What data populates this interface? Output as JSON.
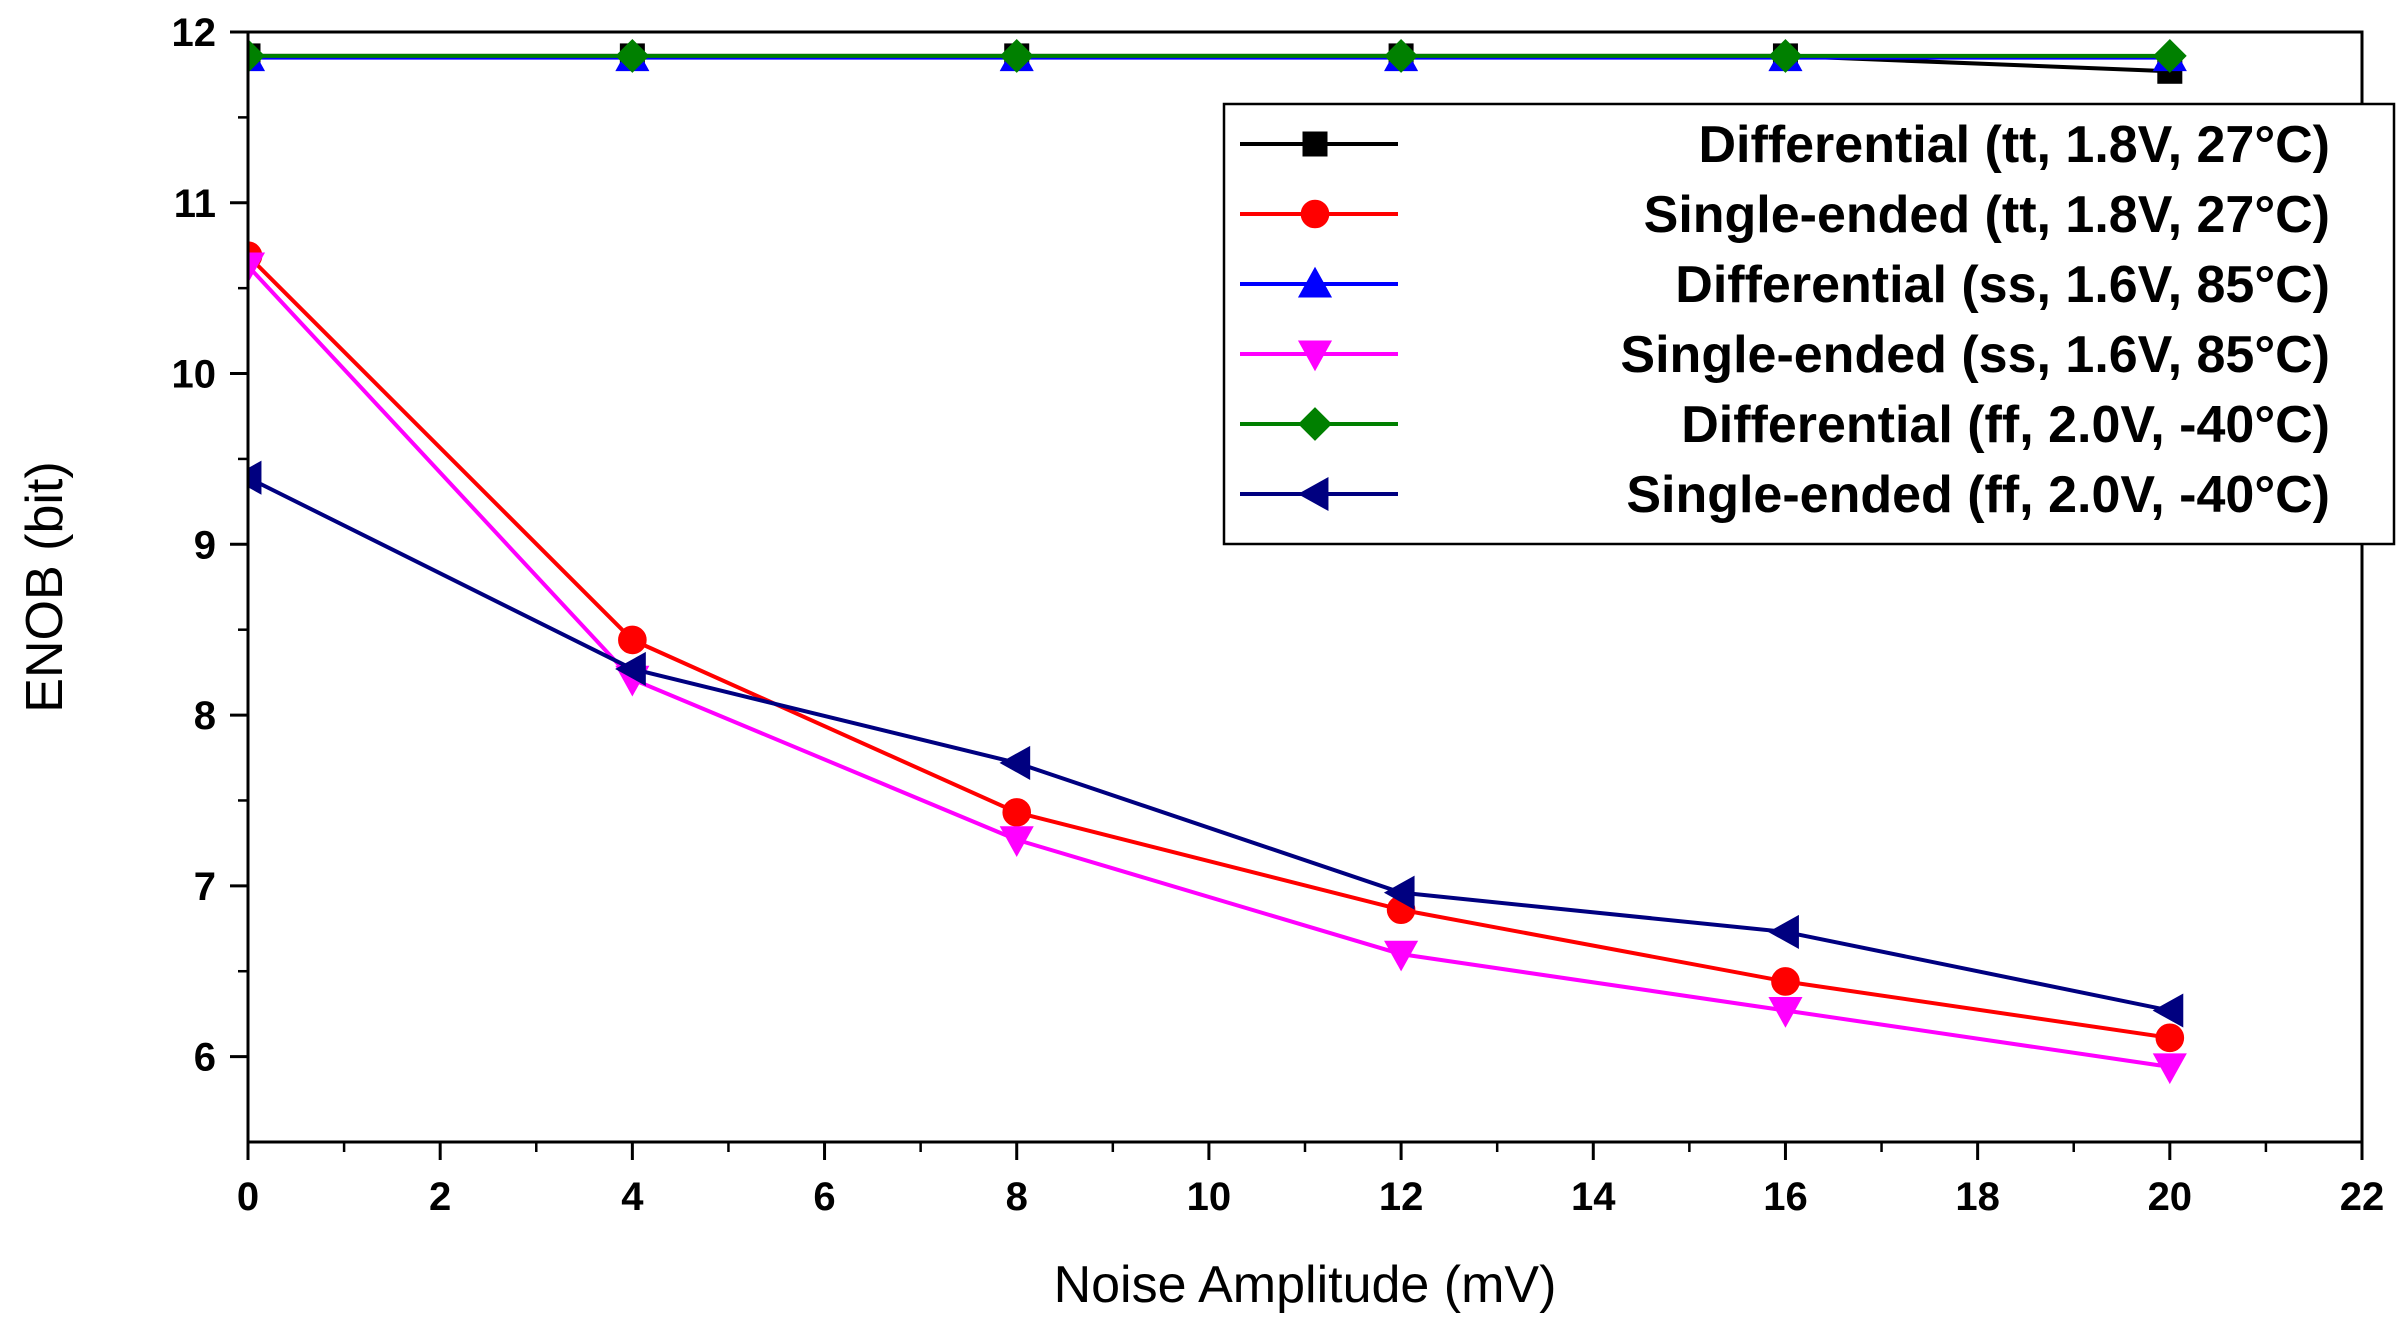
{
  "chart_data": {
    "type": "line",
    "title": "",
    "xlabel": "Noise Amplitude (mV)",
    "ylabel": "ENOB (bit)",
    "xlim": [
      0,
      22
    ],
    "ylim": [
      5.5,
      12
    ],
    "xticks": [
      0,
      2,
      4,
      6,
      8,
      10,
      12,
      14,
      16,
      18,
      20,
      22
    ],
    "yticks": [
      6,
      7,
      8,
      9,
      10,
      11,
      12
    ],
    "x": [
      0,
      4,
      8,
      12,
      16,
      20
    ],
    "grid": false,
    "legend_position": "top-right",
    "series": [
      {
        "name": "Differential (tt,  1.8V,  27°C)",
        "color": "#000000",
        "marker": "square",
        "values": [
          11.86,
          11.86,
          11.86,
          11.86,
          11.86,
          11.77
        ]
      },
      {
        "name": "Single-ended (tt,  1.8V,  27°C)",
        "color": "#ff0000",
        "marker": "circle",
        "values": [
          10.69,
          8.44,
          7.43,
          6.86,
          6.44,
          6.11
        ]
      },
      {
        "name": "Differential (ss, 1.6V, 85°C)",
        "color": "#0000ff",
        "marker": "triangle-up",
        "values": [
          11.85,
          11.85,
          11.85,
          11.85,
          11.85,
          11.85
        ]
      },
      {
        "name": "Single-ended (ss, 1.6V, 85°C)",
        "color": "#ff00ff",
        "marker": "triangle-down",
        "values": [
          10.63,
          8.21,
          7.27,
          6.6,
          6.27,
          5.94
        ]
      },
      {
        "name": "Differential (ff, 2.0V, -40°C)",
        "color": "#008000",
        "marker": "diamond",
        "values": [
          11.86,
          11.86,
          11.86,
          11.86,
          11.86,
          11.86
        ]
      },
      {
        "name": "Single-ended (ff, 2.0V, -40°C)",
        "color": "#000080",
        "marker": "triangle-left",
        "values": [
          9.39,
          8.27,
          7.72,
          6.96,
          6.73,
          6.27
        ]
      }
    ]
  }
}
